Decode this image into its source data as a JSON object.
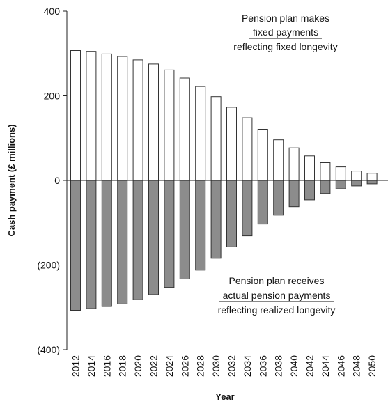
{
  "chart_data": {
    "type": "bar",
    "xlabel": "Year",
    "ylabel": "Cash payment (£ millions)",
    "ylim": [
      -400,
      400
    ],
    "yticks": [
      {
        "value": 400,
        "label": "400"
      },
      {
        "value": 200,
        "label": "200"
      },
      {
        "value": 0,
        "label": "0"
      },
      {
        "value": -200,
        "label": "(200)"
      },
      {
        "value": -400,
        "label": "(400)"
      }
    ],
    "categories": [
      "2012",
      "2014",
      "2016",
      "2018",
      "2020",
      "2022",
      "2024",
      "2026",
      "2028",
      "2030",
      "2032",
      "2034",
      "2036",
      "2038",
      "2040",
      "2042",
      "2044",
      "2046",
      "2048",
      "2050"
    ],
    "series": [
      {
        "values": [
          307,
          305,
          299,
          293,
          285,
          275,
          261,
          242,
          222,
          198,
          173,
          148,
          121,
          96,
          77,
          58,
          42,
          32,
          22,
          17
        ],
        "color": "#ffffff",
        "stroke": "#333333"
      },
      {
        "values": [
          -307,
          -303,
          -298,
          -292,
          -282,
          -270,
          -253,
          -233,
          -212,
          -184,
          -157,
          -131,
          -103,
          -82,
          -62,
          -46,
          -31,
          -20,
          -13,
          -8
        ],
        "color": "#8c8c8c",
        "stroke": "#333333"
      }
    ],
    "annotations": [
      {
        "id": "fixed",
        "lines": [
          {
            "text": "Pension plan makes",
            "underline": false
          },
          {
            "text": "fixed payments",
            "underline": true
          },
          {
            "text": "reflecting fixed longevity",
            "underline": false
          }
        ]
      },
      {
        "id": "actual",
        "lines": [
          {
            "text": "Pension plan receives",
            "underline": false
          },
          {
            "text": "actual pension payments",
            "underline": true
          },
          {
            "text": "reflecting realized longevity",
            "underline": false
          }
        ]
      }
    ],
    "grid": false,
    "legend": "none"
  }
}
